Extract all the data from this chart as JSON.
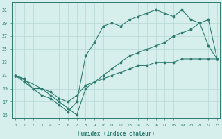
{
  "line1_x": [
    0,
    1,
    2,
    3,
    4,
    5,
    6,
    7,
    8,
    9,
    10,
    11,
    12,
    13,
    14,
    15,
    16,
    17,
    18,
    19,
    20,
    21,
    22,
    23
  ],
  "line1_y": [
    21,
    20,
    19,
    18,
    17.5,
    16.5,
    15.5,
    17,
    24,
    26,
    28.5,
    29,
    28.5,
    29.5,
    30,
    30.5,
    31,
    30.5,
    30,
    31,
    29.5,
    29,
    25.5,
    23.5
  ],
  "line2_x": [
    0,
    3,
    4,
    5,
    6,
    7,
    8,
    9,
    10,
    11,
    12,
    13,
    14,
    15,
    16,
    17,
    18,
    19,
    20,
    21,
    22,
    23
  ],
  "line2_y": [
    21,
    19,
    18,
    17,
    16,
    15,
    19,
    20,
    21,
    22,
    23,
    24,
    24.5,
    25,
    25.5,
    26,
    27,
    27.5,
    28,
    29,
    29.5,
    23.5
  ],
  "line3_x": [
    0,
    1,
    2,
    3,
    4,
    5,
    6,
    7,
    8,
    9,
    10,
    11,
    12,
    13,
    14,
    15,
    16,
    17,
    18,
    19,
    20,
    21,
    22,
    23
  ],
  "line3_y": [
    21,
    20.5,
    19,
    19,
    18.5,
    17.5,
    17,
    18,
    19.5,
    20,
    20.5,
    21,
    21.5,
    22,
    22.5,
    22.5,
    23,
    23,
    23,
    23.5,
    23.5,
    23.5,
    23.5,
    23.5
  ],
  "color": "#2e7b6f",
  "bg_color": "#d6efed",
  "grid_color": "#b5d8d4",
  "xlabel": "Humidex (Indice chaleur)",
  "ylabel_ticks": [
    15,
    17,
    19,
    21,
    23,
    25,
    27,
    29,
    31
  ],
  "xticks": [
    0,
    1,
    2,
    3,
    4,
    5,
    6,
    7,
    8,
    9,
    10,
    11,
    12,
    13,
    14,
    15,
    16,
    17,
    18,
    19,
    20,
    21,
    22,
    23
  ],
  "xlim": [
    -0.3,
    23.3
  ],
  "ylim": [
    14.5,
    32.2
  ]
}
